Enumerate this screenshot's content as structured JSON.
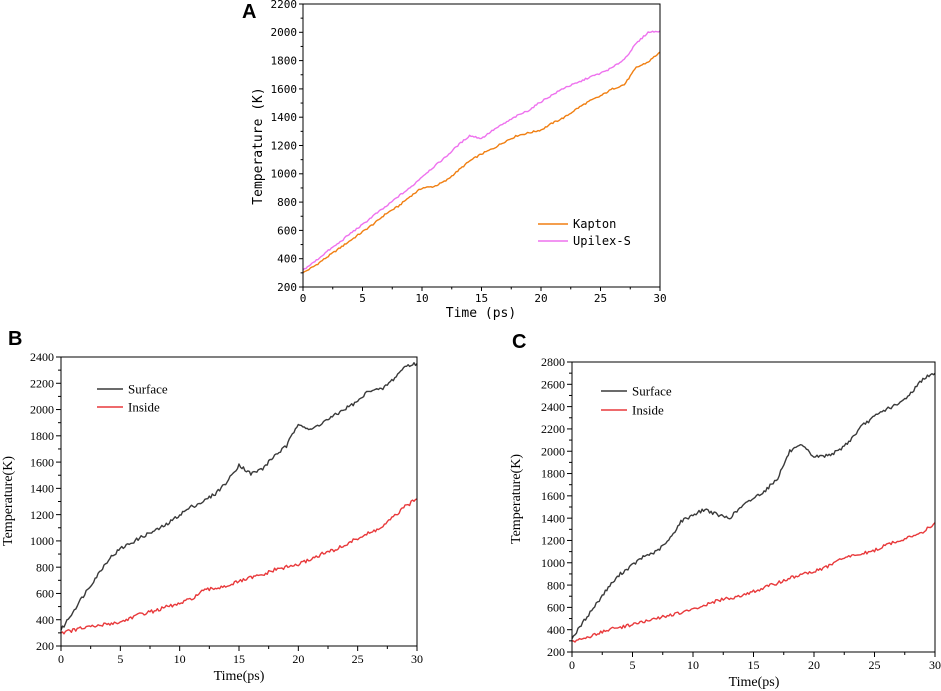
{
  "panel_labels": [
    "A",
    "B",
    "C"
  ],
  "colors": {
    "kapton": "#f07f12",
    "upilex": "#ee72ee",
    "surface": "#3a3a3a",
    "inside": "#e8393b",
    "axis": "#000000"
  },
  "chart_data": [
    {
      "type": "line",
      "panel": "A",
      "title": "",
      "xlabel": "Time (ps)",
      "ylabel": "Temperature (K)",
      "xlim": [
        0,
        30
      ],
      "ylim": [
        200,
        2200
      ],
      "xticks": [
        0,
        5,
        10,
        15,
        20,
        25,
        30
      ],
      "yticks": [
        200,
        400,
        600,
        800,
        1000,
        1200,
        1400,
        1600,
        1800,
        2000,
        2200
      ],
      "legend_position": "bottom-right",
      "series": [
        {
          "name": "Kapton",
          "color_key": "kapton",
          "points": [
            [
              0,
              300
            ],
            [
              1,
              350
            ],
            [
              2,
              410
            ],
            [
              3,
              470
            ],
            [
              4,
              530
            ],
            [
              5,
              590
            ],
            [
              6,
              650
            ],
            [
              7,
              720
            ],
            [
              8,
              770
            ],
            [
              9,
              840
            ],
            [
              10,
              900
            ],
            [
              11,
              910
            ],
            [
              12,
              950
            ],
            [
              13,
              1020
            ],
            [
              14,
              1090
            ],
            [
              15,
              1140
            ],
            [
              16,
              1180
            ],
            [
              17,
              1230
            ],
            [
              18,
              1270
            ],
            [
              19,
              1290
            ],
            [
              20,
              1310
            ],
            [
              21,
              1360
            ],
            [
              22,
              1400
            ],
            [
              23,
              1460
            ],
            [
              24,
              1510
            ],
            [
              25,
              1550
            ],
            [
              26,
              1600
            ],
            [
              27,
              1630
            ],
            [
              28,
              1750
            ],
            [
              29,
              1790
            ],
            [
              30,
              1860
            ]
          ]
        },
        {
          "name": "Upilex-S",
          "color_key": "upilex",
          "points": [
            [
              0,
              320
            ],
            [
              1,
              380
            ],
            [
              2,
              450
            ],
            [
              3,
              510
            ],
            [
              4,
              580
            ],
            [
              5,
              640
            ],
            [
              6,
              710
            ],
            [
              7,
              770
            ],
            [
              8,
              840
            ],
            [
              9,
              900
            ],
            [
              10,
              980
            ],
            [
              11,
              1050
            ],
            [
              12,
              1120
            ],
            [
              13,
              1200
            ],
            [
              14,
              1270
            ],
            [
              15,
              1250
            ],
            [
              16,
              1310
            ],
            [
              17,
              1360
            ],
            [
              18,
              1410
            ],
            [
              19,
              1450
            ],
            [
              20,
              1510
            ],
            [
              21,
              1560
            ],
            [
              22,
              1610
            ],
            [
              23,
              1640
            ],
            [
              24,
              1680
            ],
            [
              25,
              1710
            ],
            [
              26,
              1750
            ],
            [
              27,
              1810
            ],
            [
              28,
              1920
            ],
            [
              29,
              2000
            ],
            [
              30,
              2010
            ]
          ]
        }
      ]
    },
    {
      "type": "line",
      "panel": "B",
      "title": "",
      "xlabel": "Time(ps)",
      "ylabel": "Temperature(K)",
      "xlim": [
        0,
        30
      ],
      "ylim": [
        200,
        2400
      ],
      "xticks": [
        0,
        5,
        10,
        15,
        20,
        25,
        30
      ],
      "yticks": [
        200,
        400,
        600,
        800,
        1000,
        1200,
        1400,
        1600,
        1800,
        2000,
        2200,
        2400
      ],
      "legend_position": "top-left",
      "series": [
        {
          "name": "Surface",
          "color_key": "surface",
          "points": [
            [
              0,
              320
            ],
            [
              1,
              460
            ],
            [
              2,
              600
            ],
            [
              3,
              730
            ],
            [
              4,
              860
            ],
            [
              5,
              940
            ],
            [
              6,
              990
            ],
            [
              7,
              1040
            ],
            [
              8,
              1080
            ],
            [
              9,
              1130
            ],
            [
              10,
              1200
            ],
            [
              11,
              1260
            ],
            [
              12,
              1300
            ],
            [
              13,
              1360
            ],
            [
              14,
              1450
            ],
            [
              15,
              1580
            ],
            [
              16,
              1510
            ],
            [
              17,
              1550
            ],
            [
              18,
              1650
            ],
            [
              19,
              1720
            ],
            [
              20,
              1900
            ],
            [
              21,
              1840
            ],
            [
              22,
              1900
            ],
            [
              23,
              1950
            ],
            [
              24,
              2010
            ],
            [
              25,
              2060
            ],
            [
              26,
              2150
            ],
            [
              27,
              2150
            ],
            [
              28,
              2230
            ],
            [
              29,
              2330
            ],
            [
              30,
              2350
            ]
          ]
        },
        {
          "name": "Inside",
          "color_key": "inside",
          "points": [
            [
              0,
              300
            ],
            [
              1,
              320
            ],
            [
              2,
              340
            ],
            [
              3,
              350
            ],
            [
              4,
              370
            ],
            [
              5,
              380
            ],
            [
              6,
              420
            ],
            [
              7,
              450
            ],
            [
              8,
              470
            ],
            [
              9,
              500
            ],
            [
              10,
              520
            ],
            [
              11,
              560
            ],
            [
              12,
              620
            ],
            [
              13,
              640
            ],
            [
              14,
              660
            ],
            [
              15,
              690
            ],
            [
              16,
              720
            ],
            [
              17,
              740
            ],
            [
              18,
              780
            ],
            [
              19,
              800
            ],
            [
              20,
              820
            ],
            [
              21,
              860
            ],
            [
              22,
              900
            ],
            [
              23,
              930
            ],
            [
              24,
              970
            ],
            [
              25,
              1020
            ],
            [
              26,
              1060
            ],
            [
              27,
              1100
            ],
            [
              28,
              1180
            ],
            [
              29,
              1260
            ],
            [
              30,
              1320
            ]
          ]
        }
      ]
    },
    {
      "type": "line",
      "panel": "C",
      "title": "",
      "xlabel": "Time(ps)",
      "ylabel": "Temperature(K)",
      "xlim": [
        0,
        30
      ],
      "ylim": [
        200,
        2800
      ],
      "xticks": [
        0,
        5,
        10,
        15,
        20,
        25,
        30
      ],
      "yticks": [
        200,
        400,
        600,
        800,
        1000,
        1200,
        1400,
        1600,
        1800,
        2000,
        2200,
        2400,
        2600,
        2800
      ],
      "legend_position": "top-left",
      "series": [
        {
          "name": "Surface",
          "color_key": "surface",
          "points": [
            [
              0,
              320
            ],
            [
              1,
              480
            ],
            [
              2,
              630
            ],
            [
              3,
              780
            ],
            [
              4,
              900
            ],
            [
              5,
              980
            ],
            [
              6,
              1060
            ],
            [
              7,
              1100
            ],
            [
              8,
              1200
            ],
            [
              9,
              1370
            ],
            [
              10,
              1430
            ],
            [
              11,
              1480
            ],
            [
              12,
              1430
            ],
            [
              13,
              1400
            ],
            [
              14,
              1500
            ],
            [
              15,
              1580
            ],
            [
              16,
              1650
            ],
            [
              17,
              1760
            ],
            [
              18,
              2000
            ],
            [
              19,
              2050
            ],
            [
              20,
              1950
            ],
            [
              21,
              1960
            ],
            [
              22,
              2000
            ],
            [
              23,
              2100
            ],
            [
              24,
              2230
            ],
            [
              25,
              2310
            ],
            [
              26,
              2380
            ],
            [
              27,
              2420
            ],
            [
              28,
              2520
            ],
            [
              29,
              2650
            ],
            [
              30,
              2700
            ]
          ]
        },
        {
          "name": "Inside",
          "color_key": "inside",
          "points": [
            [
              0,
              300
            ],
            [
              1,
              320
            ],
            [
              2,
              360
            ],
            [
              3,
              400
            ],
            [
              4,
              420
            ],
            [
              5,
              450
            ],
            [
              6,
              470
            ],
            [
              7,
              500
            ],
            [
              8,
              530
            ],
            [
              9,
              550
            ],
            [
              10,
              580
            ],
            [
              11,
              620
            ],
            [
              12,
              660
            ],
            [
              13,
              680
            ],
            [
              14,
              710
            ],
            [
              15,
              740
            ],
            [
              16,
              780
            ],
            [
              17,
              820
            ],
            [
              18,
              860
            ],
            [
              19,
              900
            ],
            [
              20,
              920
            ],
            [
              21,
              960
            ],
            [
              22,
              1020
            ],
            [
              23,
              1060
            ],
            [
              24,
              1080
            ],
            [
              25,
              1110
            ],
            [
              26,
              1160
            ],
            [
              27,
              1200
            ],
            [
              28,
              1230
            ],
            [
              29,
              1280
            ],
            [
              30,
              1360
            ]
          ]
        }
      ]
    }
  ]
}
